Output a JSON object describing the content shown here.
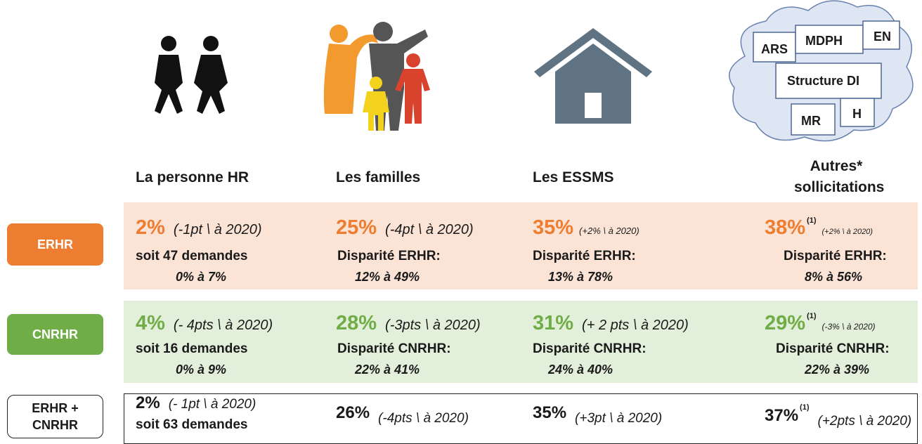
{
  "columns": [
    [
      "La personne HR"
    ],
    [
      "Les familles"
    ],
    [
      "Les ESSMS"
    ],
    [
      "Autres*",
      "sollicitations"
    ]
  ],
  "cloud": [
    "ARS",
    "MDPH",
    "EN",
    "Structure DI",
    "MR",
    "H"
  ],
  "rows": [
    {
      "label": [
        "ERHR"
      ],
      "cells": [
        {
          "pct": "2%",
          "note": "(-1pt \\ à 2020)",
          "lines": [
            "soit 47 demandes",
            "0% à 7%"
          ]
        },
        {
          "pct": "25%",
          "note": "(-4pt \\ à 2020)",
          "lines": [
            "Disparité ERHR:",
            "12% à 49%"
          ]
        },
        {
          "pct": "35%",
          "note": "(+2% \\ à 2020)",
          "lines": [
            "Disparité ERHR:",
            "13% à 78%"
          ]
        },
        {
          "pct": "38%",
          "sup": "(1)",
          "note": "(+2% \\ à 2020)",
          "lines": [
            "Disparité ERHR:",
            "8% à 56%"
          ]
        }
      ]
    },
    {
      "label": [
        "CNRHR"
      ],
      "cells": [
        {
          "pct": "4%",
          "note": "(- 4pts \\ à 2020)",
          "lines": [
            "soit 16 demandes",
            "0% à 9%"
          ]
        },
        {
          "pct": "28%",
          "note": "(-3pts \\ à 2020)",
          "lines": [
            "Disparité CNRHR:",
            "22% à 41%"
          ]
        },
        {
          "pct": "31%",
          "note": "(+ 2 pts \\ à 2020)",
          "lines": [
            "Disparité CNRHR:",
            "24% à 40%"
          ]
        },
        {
          "pct": "29%",
          "sup": "(1)",
          "note": "(-3% \\ à 2020)",
          "lines": [
            "Disparité CNRHR:",
            "22% à 39%"
          ]
        }
      ]
    },
    {
      "label": [
        "ERHR +",
        "CNRHR"
      ],
      "cells": [
        {
          "pct": "2%",
          "note": "(- 1pt \\ à 2020)",
          "lines": [
            "soit 63 demandes"
          ]
        },
        {
          "pct": "26%",
          "note": "(-4pts \\ à 2020)",
          "lines": []
        },
        {
          "pct": "35%",
          "note": "(+3pt \\ à 2020)",
          "lines": []
        },
        {
          "pct": "37%",
          "sup": "(1)",
          "note": "(+2pts \\ à 2020)",
          "lines": []
        }
      ]
    }
  ]
}
